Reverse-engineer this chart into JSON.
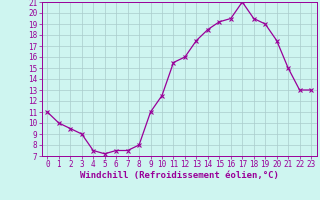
{
  "hours": [
    0,
    1,
    2,
    3,
    4,
    5,
    6,
    7,
    8,
    9,
    10,
    11,
    12,
    13,
    14,
    15,
    16,
    17,
    18,
    19,
    20,
    21,
    22,
    23
  ],
  "temps": [
    11,
    10,
    9.5,
    9,
    7.5,
    7.2,
    7.5,
    7.5,
    8.0,
    11,
    12.5,
    15.5,
    16.0,
    17.5,
    18.5,
    19.2,
    19.5,
    21.0,
    19.5,
    19.0,
    17.5,
    15.0,
    13.0,
    13.0
  ],
  "line_color": "#990099",
  "marker": "x",
  "marker_size": 3,
  "marker_lw": 0.8,
  "line_width": 0.9,
  "bg_color": "#cef5f0",
  "grid_color": "#aacccc",
  "axis_label_color": "#990099",
  "tick_color": "#990099",
  "xlabel": "Windchill (Refroidissement éolien,°C)",
  "ylim": [
    7,
    21
  ],
  "xlim_min": -0.5,
  "xlim_max": 23.5,
  "yticks": [
    7,
    8,
    9,
    10,
    11,
    12,
    13,
    14,
    15,
    16,
    17,
    18,
    19,
    20,
    21
  ],
  "xticks": [
    0,
    1,
    2,
    3,
    4,
    5,
    6,
    7,
    8,
    9,
    10,
    11,
    12,
    13,
    14,
    15,
    16,
    17,
    18,
    19,
    20,
    21,
    22,
    23
  ],
  "tick_fontsize": 5.5,
  "xlabel_fontsize": 6.5,
  "xlabel_fontweight": "bold"
}
